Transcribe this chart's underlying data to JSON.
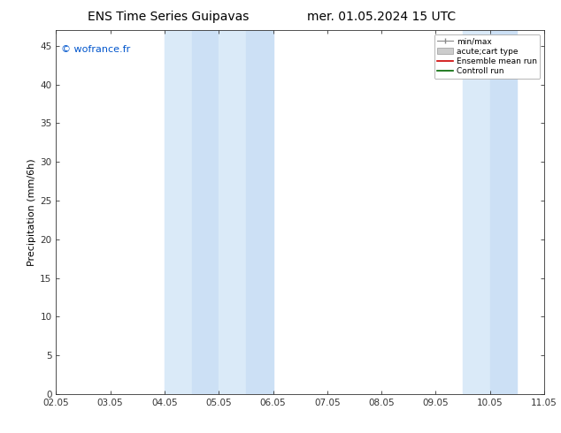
{
  "title_left": "ENS Time Series Guipavas",
  "title_right": "mer. 01.05.2024 15 UTC",
  "ylabel": "Precipitation (mm/6h)",
  "watermark": "© wofrance.fr",
  "watermark_color": "#0055cc",
  "xlim_left": 0,
  "xlim_right": 9,
  "ylim_bottom": 0,
  "ylim_top": 47,
  "yticks": [
    0,
    5,
    10,
    15,
    20,
    25,
    30,
    35,
    40,
    45
  ],
  "xtick_labels": [
    "02.05",
    "03.05",
    "04.05",
    "05.05",
    "06.05",
    "07.05",
    "08.05",
    "09.05",
    "10.05",
    "11.05"
  ],
  "xtick_positions": [
    0,
    1,
    2,
    3,
    4,
    5,
    6,
    7,
    8,
    9
  ],
  "shade_regions": [
    {
      "xmin": 2.0,
      "xmax": 2.5,
      "color": "#daeaf8"
    },
    {
      "xmin": 2.5,
      "xmax": 3.0,
      "color": "#cce0f5"
    },
    {
      "xmin": 3.0,
      "xmax": 3.5,
      "color": "#daeaf8"
    },
    {
      "xmin": 3.5,
      "xmax": 4.0,
      "color": "#cce0f5"
    },
    {
      "xmin": 7.5,
      "xmax": 8.0,
      "color": "#daeaf8"
    },
    {
      "xmin": 8.0,
      "xmax": 8.5,
      "color": "#cce0f5"
    }
  ],
  "background_color": "#ffffff",
  "tick_label_size": 7.5,
  "ylabel_fontsize": 8,
  "title_fontsize": 10,
  "watermark_fontsize": 8
}
